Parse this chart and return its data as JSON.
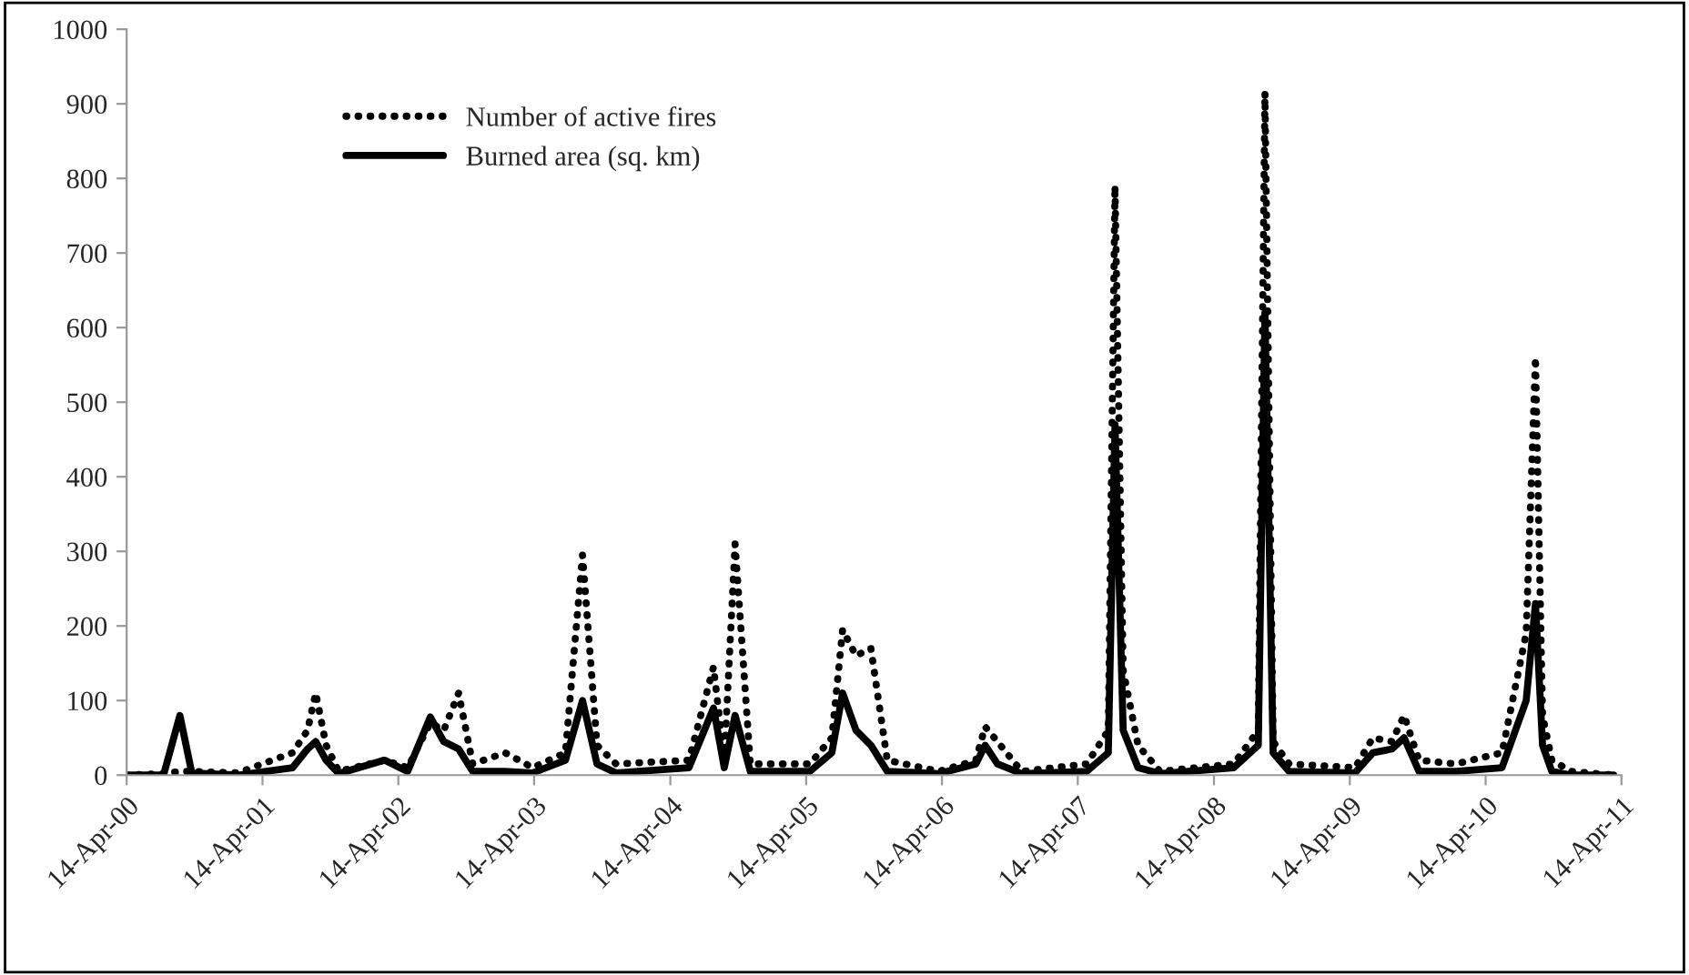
{
  "chart_data": {
    "type": "line",
    "x": [
      "2000-04-14",
      "2000-07-22",
      "2000-09-04",
      "2000-10-06",
      "2001-02-07",
      "2001-07-04",
      "2001-08-13",
      "2001-09-04",
      "2001-10-02",
      "2001-11-05",
      "2002-03-08",
      "2002-05-09",
      "2002-07-09",
      "2002-08-14",
      "2002-09-23",
      "2002-10-31",
      "2003-01-26",
      "2003-04-10",
      "2003-07-07",
      "2003-08-22",
      "2003-09-30",
      "2003-11-20",
      "2004-06-03",
      "2004-08-08",
      "2004-09-06",
      "2004-10-05",
      "2004-11-15",
      "2005-04-24",
      "2005-06-22",
      "2005-07-21",
      "2005-08-26",
      "2005-10-05",
      "2005-11-18",
      "2006-04-06",
      "2006-07-14",
      "2006-08-08",
      "2006-09-10",
      "2006-11-14",
      "2007-05-08",
      "2007-07-05",
      "2007-07-23",
      "2007-08-14",
      "2007-09-23",
      "2007-11-21",
      "2008-06-06",
      "2008-08-11",
      "2008-08-29",
      "2008-09-20",
      "2008-11-02",
      "2009-04-28",
      "2009-06-15",
      "2009-08-05",
      "2009-09-07",
      "2009-10-17",
      "2010-01-24",
      "2010-05-28",
      "2010-08-01",
      "2010-08-26",
      "2010-09-14",
      "2010-10-09",
      "2010-11-30",
      "2011-03-24"
    ],
    "series": [
      {
        "name": "Number of active fires",
        "color": "#000000",
        "line_style": "dotted",
        "values": [
          0,
          2,
          5,
          5,
          3,
          30,
          60,
          110,
          40,
          5,
          20,
          10,
          70,
          60,
          110,
          15,
          30,
          10,
          30,
          295,
          40,
          15,
          20,
          145,
          20,
          310,
          15,
          15,
          50,
          195,
          160,
          170,
          20,
          5,
          20,
          65,
          45,
          5,
          15,
          60,
          790,
          140,
          40,
          5,
          15,
          60,
          915,
          45,
          15,
          10,
          50,
          45,
          80,
          20,
          15,
          30,
          190,
          560,
          80,
          20,
          5,
          0
        ]
      },
      {
        "name": "Burned area (sq. km)",
        "color": "#000000",
        "line_style": "solid",
        "values": [
          0,
          0,
          80,
          3,
          0,
          10,
          35,
          45,
          20,
          2,
          20,
          5,
          78,
          45,
          35,
          5,
          5,
          3,
          20,
          100,
          15,
          3,
          10,
          90,
          10,
          80,
          5,
          5,
          30,
          110,
          60,
          40,
          5,
          2,
          15,
          40,
          15,
          2,
          5,
          30,
          470,
          60,
          10,
          2,
          10,
          40,
          620,
          30,
          5,
          3,
          30,
          35,
          50,
          5,
          5,
          10,
          100,
          230,
          40,
          5,
          0,
          0
        ]
      }
    ],
    "xlim": [
      "2000-04-14",
      "2011-04-14"
    ],
    "xticks": [
      {
        "value": "2000-04-14",
        "label": "14-Apr-00"
      },
      {
        "value": "2001-04-14",
        "label": "14-Apr-01"
      },
      {
        "value": "2002-04-14",
        "label": "14-Apr-02"
      },
      {
        "value": "2003-04-14",
        "label": "14-Apr-03"
      },
      {
        "value": "2004-04-14",
        "label": "14-Apr-04"
      },
      {
        "value": "2005-04-14",
        "label": "14-Apr-05"
      },
      {
        "value": "2006-04-14",
        "label": "14-Apr-06"
      },
      {
        "value": "2007-04-14",
        "label": "14-Apr-07"
      },
      {
        "value": "2008-04-14",
        "label": "14-Apr-08"
      },
      {
        "value": "2009-04-14",
        "label": "14-Apr-09"
      },
      {
        "value": "2010-04-14",
        "label": "14-Apr-10"
      },
      {
        "value": "2011-04-14",
        "label": "14-Apr-11"
      }
    ],
    "ylim": [
      0,
      1000
    ],
    "yticks": [
      0,
      100,
      200,
      300,
      400,
      500,
      600,
      700,
      800,
      900,
      1000
    ],
    "grid": false,
    "legend": "top left"
  }
}
